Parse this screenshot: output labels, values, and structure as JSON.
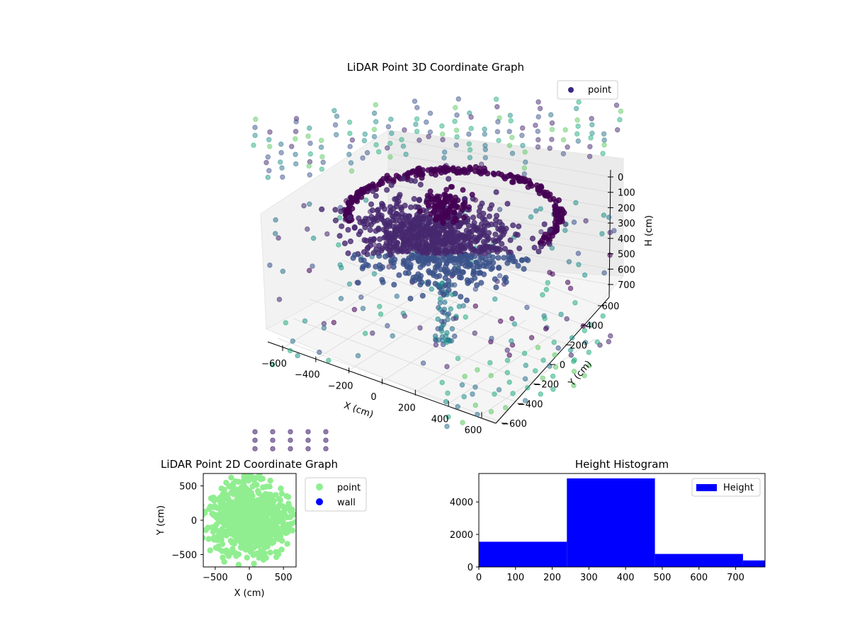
{
  "chart_data": [
    {
      "type": "scatter",
      "projection": "3d",
      "title": "LiDAR Point 3D Coordinate Graph",
      "xlabel": "X (cm)",
      "ylabel": "Y (cm)",
      "zlabel": "H (cm)",
      "xticks": [
        "−600",
        "−400",
        "−200",
        "0",
        "200",
        "400",
        "600"
      ],
      "yticks": [
        "−600",
        "−400",
        "−200",
        "0",
        "200",
        "400",
        "600"
      ],
      "zticks": [
        "0",
        "100",
        "200",
        "300",
        "400",
        "500",
        "600",
        "700"
      ],
      "xlim": [
        -700,
        700
      ],
      "ylim": [
        -700,
        700
      ],
      "zlim": [
        0,
        780
      ],
      "zaxis_inverted": true,
      "grid": true,
      "colormap": "viridis",
      "legend": {
        "labels": [
          "point"
        ],
        "placement": "top-right"
      },
      "series": [
        {
          "name": "point",
          "color": "#3b2883"
        }
      ]
    },
    {
      "type": "scatter",
      "title": "LiDAR Point 2D Coordinate Graph",
      "xlabel": "X (cm)",
      "ylabel": "Y (cm)",
      "xticks": [
        "−500",
        "0",
        "500"
      ],
      "yticks": [
        "500",
        "0",
        "−500"
      ],
      "xlim": [
        -680,
        680
      ],
      "ylim": [
        -680,
        680
      ],
      "legend": {
        "labels": [
          "point",
          "wall"
        ],
        "placement": "outside right"
      },
      "series": [
        {
          "name": "point",
          "color": "#90ee90"
        },
        {
          "name": "wall",
          "color": "#0000ff",
          "values": []
        }
      ]
    },
    {
      "type": "bar",
      "subtype": "histogram",
      "title": "Height Histogram",
      "xticks": [
        "0",
        "100",
        "200",
        "300",
        "400",
        "500",
        "600",
        "700"
      ],
      "yticks": [
        "0",
        "2000",
        "4000"
      ],
      "xlim": [
        0,
        780
      ],
      "ylim": [
        0,
        5750
      ],
      "bins": [
        {
          "start": 0,
          "end": 240,
          "count": 1550
        },
        {
          "start": 240,
          "end": 480,
          "count": 5450
        },
        {
          "start": 480,
          "end": 720,
          "count": 800
        },
        {
          "start": 720,
          "end": 960,
          "count": 400
        }
      ],
      "color": "#0000ff",
      "legend": {
        "labels": [
          "Height"
        ],
        "placement": "top-right"
      }
    }
  ]
}
